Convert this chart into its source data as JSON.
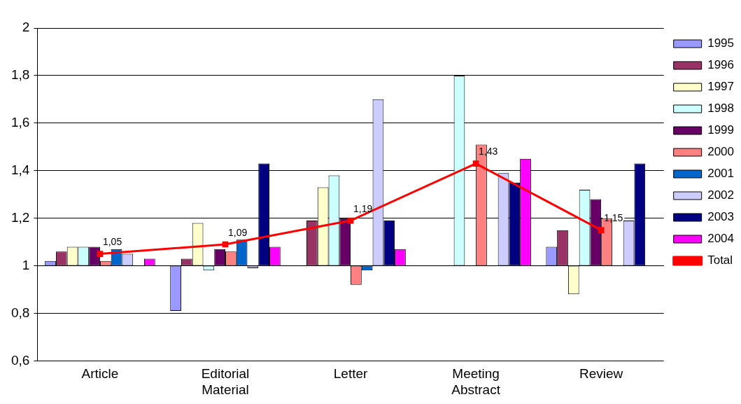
{
  "chart_data": {
    "type": "bar",
    "categories": [
      "Article",
      "Editorial Material",
      "Letter",
      "Meeting Abstract",
      "Review"
    ],
    "series": [
      {
        "name": "1995",
        "color": "#9999ff",
        "base": [
          1,
          1,
          null,
          null,
          1
        ],
        "values": [
          0.02,
          -0.19,
          null,
          null,
          0.08
        ]
      },
      {
        "name": "1996",
        "color": "#993366",
        "base": [
          1,
          1,
          1,
          null,
          1
        ],
        "values": [
          0.06,
          0.03,
          0.19,
          null,
          0.15
        ]
      },
      {
        "name": "1997",
        "color": "#ffffcc",
        "base": [
          1,
          1,
          1,
          null,
          1
        ],
        "values": [
          0.08,
          0.18,
          0.33,
          null,
          -0.12
        ]
      },
      {
        "name": "1998",
        "color": "#ccffff",
        "base": [
          1,
          1,
          1,
          1,
          1
        ],
        "values": [
          0.08,
          -0.02,
          0.38,
          0.8,
          0.32
        ]
      },
      {
        "name": "1999",
        "color": "#660066",
        "base": [
          1,
          1,
          1,
          null,
          1
        ],
        "values": [
          0.08,
          0.07,
          0.2,
          null,
          0.28
        ]
      },
      {
        "name": "2000",
        "color": "#ff8080",
        "base": [
          1,
          1,
          1,
          1,
          1
        ],
        "values": [
          0.02,
          0.06,
          -0.08,
          0.51,
          0.2
        ]
      },
      {
        "name": "2001",
        "color": "#0066cc",
        "base": [
          1,
          1,
          1,
          null,
          null
        ],
        "values": [
          0.07,
          0.11,
          -0.02,
          null,
          null
        ]
      },
      {
        "name": "2002",
        "color": "#ccccff",
        "base": [
          1,
          1,
          1,
          1,
          1
        ],
        "values": [
          0.05,
          -0.01,
          0.7,
          0.39,
          0.19
        ]
      },
      {
        "name": "2003",
        "color": "#000080",
        "base": [
          null,
          1,
          1,
          1,
          1
        ],
        "values": [
          null,
          0.43,
          0.19,
          0.35,
          0.43
        ]
      },
      {
        "name": "2004",
        "color": "#ff00ff",
        "base": [
          1,
          1,
          1,
          1,
          null
        ],
        "values": [
          0.03,
          0.08,
          0.07,
          0.45,
          null
        ]
      },
      {
        "name": "Total",
        "type": "line",
        "color": "#ff0000",
        "values": [
          1.05,
          1.09,
          1.19,
          1.43,
          1.15
        ],
        "value_labels": [
          "1,05",
          "1,09",
          "1,19",
          "1,43",
          "1,15"
        ]
      }
    ],
    "ylim": [
      0.6,
      2
    ],
    "yticks": [
      {
        "value": 0.6,
        "label": "0,6"
      },
      {
        "value": 0.8,
        "label": "0,8"
      },
      {
        "value": 1,
        "label": "1"
      },
      {
        "value": 1.2,
        "label": "1,2"
      },
      {
        "value": 1.4,
        "label": "1,4"
      },
      {
        "value": 1.6,
        "label": "1,6"
      },
      {
        "value": 1.8,
        "label": "1,8"
      },
      {
        "value": 2,
        "label": "2"
      }
    ],
    "grid": "y",
    "legend": "right",
    "marker": "square",
    "line_style": "solid"
  }
}
